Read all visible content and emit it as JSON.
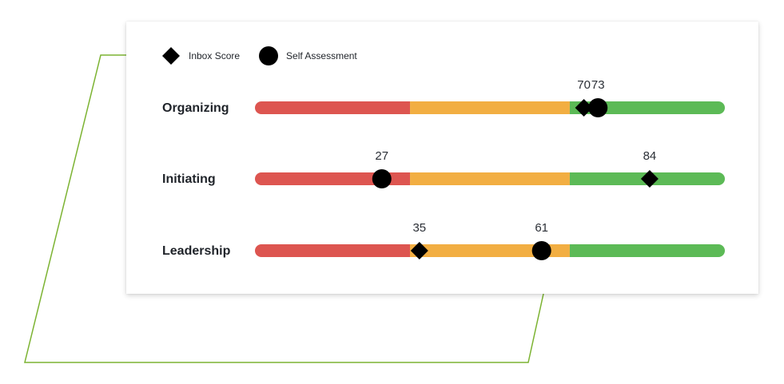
{
  "legend": {
    "inbox_label": "Inbox Score",
    "self_label": "Self Assessment"
  },
  "colors": {
    "low": "#dd5550",
    "mid": "#f2ae42",
    "high": "#5cba56",
    "marker": "#000000",
    "outline": "#7cb332"
  },
  "chart_data": {
    "type": "range-bar",
    "scale": [
      0,
      100
    ],
    "bands": [
      {
        "from": 0,
        "to": 33,
        "color": "#dd5550"
      },
      {
        "from": 33,
        "to": 67,
        "color": "#f2ae42"
      },
      {
        "from": 67,
        "to": 100,
        "color": "#5cba56"
      }
    ],
    "categories": [
      "Organizing",
      "Initiating",
      "Leadership"
    ],
    "series": [
      {
        "name": "Inbox Score",
        "marker": "diamond",
        "values": [
          70,
          84,
          35
        ]
      },
      {
        "name": "Self Assessment",
        "marker": "circle",
        "values": [
          73,
          27,
          61
        ]
      }
    ]
  }
}
